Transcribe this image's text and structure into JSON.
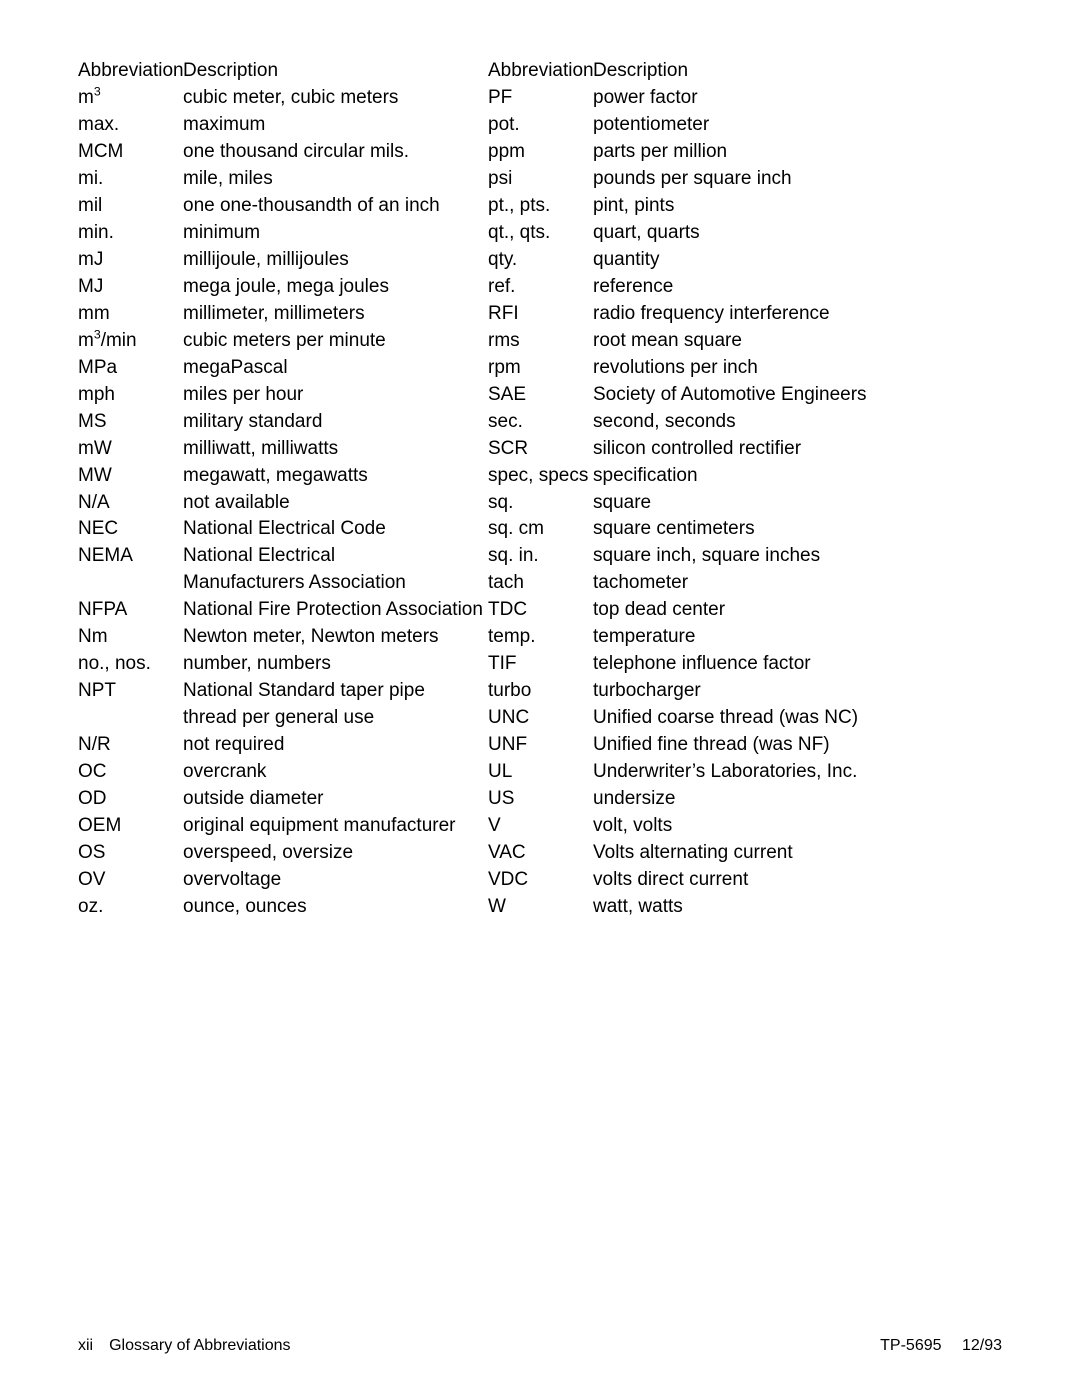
{
  "headers": {
    "abbr": "Abbreviation",
    "desc": "Description"
  },
  "left": [
    {
      "abbr": "m<sup>3</sup>",
      "desc": "cubic meter, cubic meters"
    },
    {
      "abbr": "max.",
      "desc": "maximum"
    },
    {
      "abbr": "MCM",
      "desc": "one thousand circular mils."
    },
    {
      "abbr": "mi.",
      "desc": "mile, miles"
    },
    {
      "abbr": "mil",
      "desc": "one one-thousandth of an inch"
    },
    {
      "abbr": "min.",
      "desc": "minimum"
    },
    {
      "abbr": "mJ",
      "desc": "millijoule, millijoules"
    },
    {
      "abbr": "MJ",
      "desc": "mega joule, mega joules"
    },
    {
      "abbr": "mm",
      "desc": "millimeter, millimeters"
    },
    {
      "abbr": "m<sup>3</sup>/min",
      "desc": "cubic meters per minute"
    },
    {
      "abbr": "MPa",
      "desc": "megaPascal"
    },
    {
      "abbr": "mph",
      "desc": "miles per hour"
    },
    {
      "abbr": "MS",
      "desc": "military standard"
    },
    {
      "abbr": "mW",
      "desc": "milliwatt, milliwatts"
    },
    {
      "abbr": "MW",
      "desc": "megawatt, megawatts"
    },
    {
      "abbr": "N/A",
      "desc": "not available"
    },
    {
      "abbr": "NEC",
      "desc": "National Electrical Code"
    },
    {
      "abbr": "NEMA",
      "desc": "National Electrical"
    },
    {
      "abbr": "",
      "desc": "Manufacturers Association"
    },
    {
      "abbr": "NFPA",
      "desc": "National Fire Protection Association"
    },
    {
      "abbr": "Nm",
      "desc": "Newton meter, Newton meters"
    },
    {
      "abbr": "no., nos.",
      "desc": "number, numbers"
    },
    {
      "abbr": "NPT",
      "desc": "National Standard taper pipe"
    },
    {
      "abbr": "",
      "desc": "thread per general use"
    },
    {
      "abbr": "N/R",
      "desc": "not required"
    },
    {
      "abbr": "OC",
      "desc": "overcrank"
    },
    {
      "abbr": "OD",
      "desc": "outside diameter"
    },
    {
      "abbr": "OEM",
      "desc": "original equipment manufacturer"
    },
    {
      "abbr": "OS",
      "desc": "overspeed, oversize"
    },
    {
      "abbr": "OV",
      "desc": "overvoltage"
    },
    {
      "abbr": "oz.",
      "desc": "ounce, ounces"
    }
  ],
  "right": [
    {
      "abbr": "PF",
      "desc": "power factor"
    },
    {
      "abbr": "pot.",
      "desc": "potentiometer"
    },
    {
      "abbr": "ppm",
      "desc": "parts per million"
    },
    {
      "abbr": "psi",
      "desc": "pounds per square inch"
    },
    {
      "abbr": "pt., pts.",
      "desc": "pint, pints"
    },
    {
      "abbr": "qt., qts.",
      "desc": "quart, quarts"
    },
    {
      "abbr": "qty.",
      "desc": "quantity"
    },
    {
      "abbr": "ref.",
      "desc": "reference"
    },
    {
      "abbr": "RFI",
      "desc": "radio frequency interference"
    },
    {
      "abbr": "rms",
      "desc": "root mean square"
    },
    {
      "abbr": "rpm",
      "desc": "revolutions per inch"
    },
    {
      "abbr": "SAE",
      "desc": "Society of Automotive Engineers"
    },
    {
      "abbr": "sec.",
      "desc": "second, seconds"
    },
    {
      "abbr": "SCR",
      "desc": "silicon controlled rectifier"
    },
    {
      "abbr": "spec, specs",
      "desc": "specification"
    },
    {
      "abbr": "sq.",
      "desc": "square"
    },
    {
      "abbr": "sq. cm",
      "desc": "square centimeters"
    },
    {
      "abbr": "sq. in.",
      "desc": "square inch, square inches"
    },
    {
      "abbr": "tach",
      "desc": "tachometer"
    },
    {
      "abbr": "TDC",
      "desc": "top dead center"
    },
    {
      "abbr": "temp.",
      "desc": "temperature"
    },
    {
      "abbr": "TIF",
      "desc": "telephone influence factor"
    },
    {
      "abbr": "turbo",
      "desc": "turbocharger"
    },
    {
      "abbr": "UNC",
      "desc": "Unified coarse thread (was NC)"
    },
    {
      "abbr": "UNF",
      "desc": "Unified fine thread (was NF)"
    },
    {
      "abbr": "UL",
      "desc": "Underwriter’s Laboratories, Inc."
    },
    {
      "abbr": "US",
      "desc": "undersize"
    },
    {
      "abbr": "V",
      "desc": "volt, volts"
    },
    {
      "abbr": "VAC",
      "desc": "Volts alternating current"
    },
    {
      "abbr": "VDC",
      "desc": "volts direct current"
    },
    {
      "abbr": "W",
      "desc": "watt, watts"
    }
  ],
  "footer": {
    "left": "xii Glossary of Abbreviations",
    "right": "TP-5695  12/93"
  }
}
